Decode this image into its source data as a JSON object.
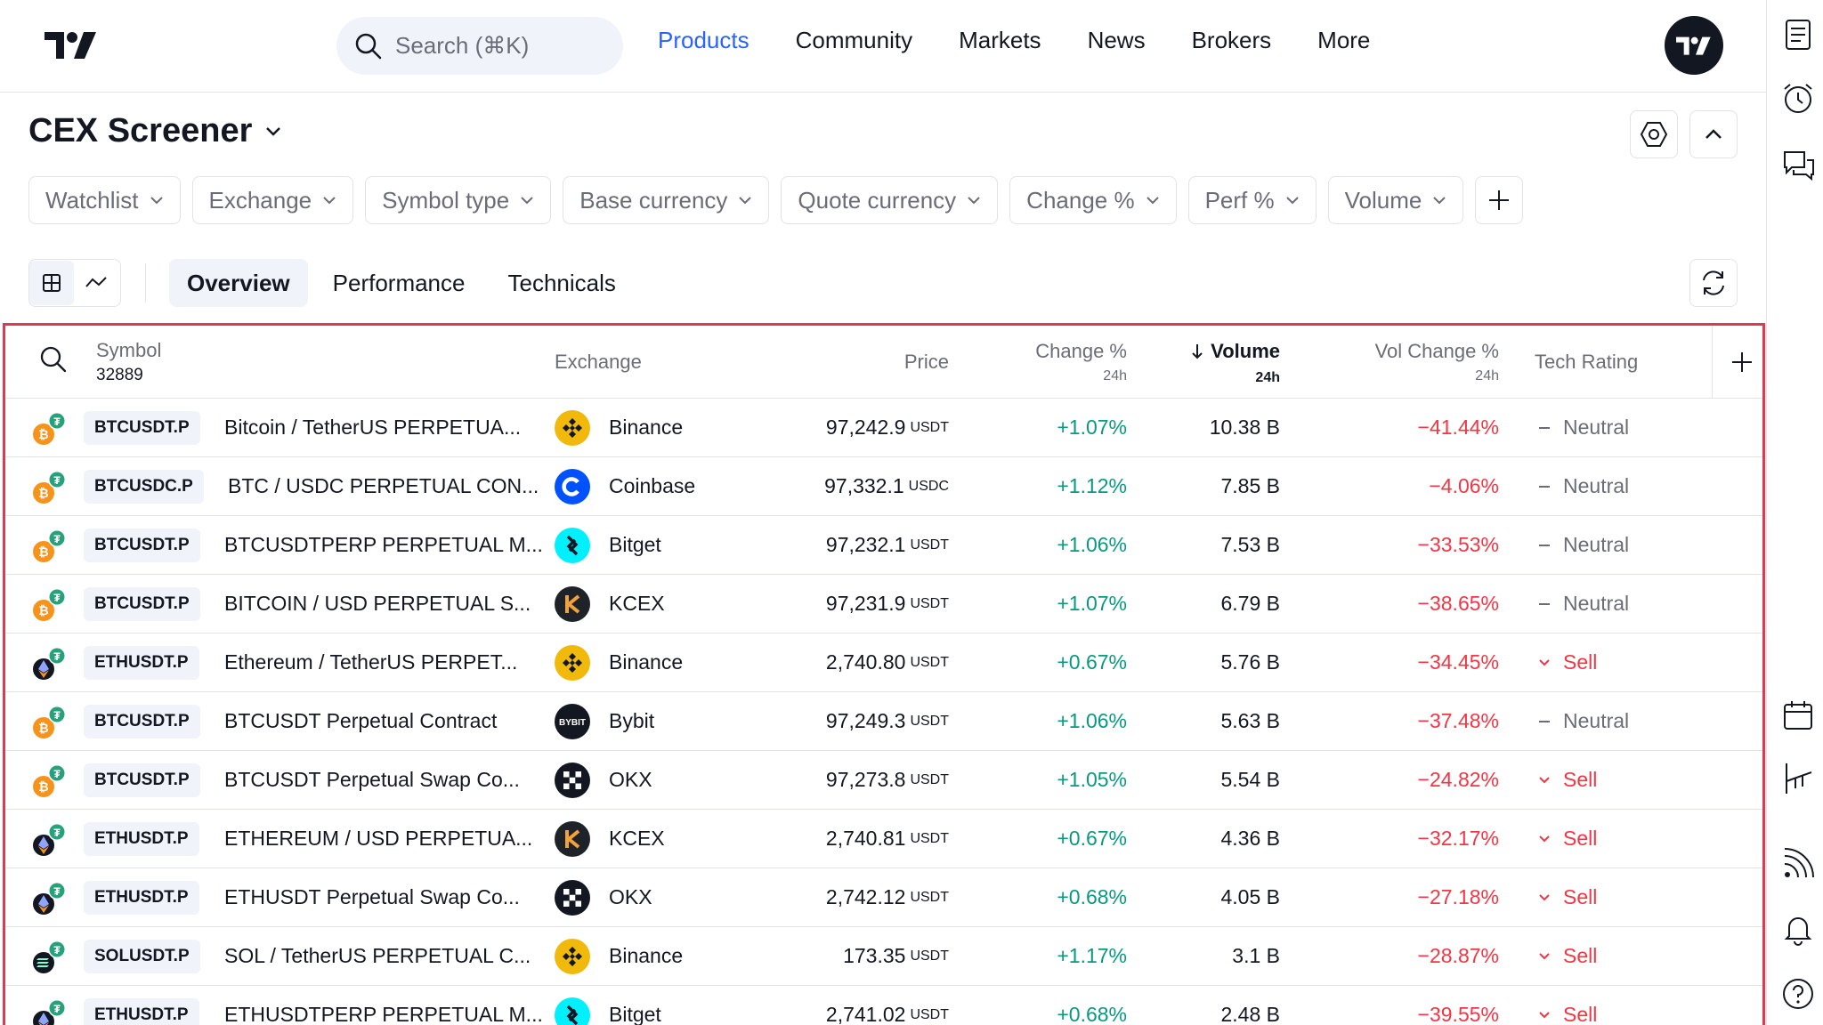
{
  "header": {
    "search_placeholder": "Search (⌘K)",
    "nav": [
      "Products",
      "Community",
      "Markets",
      "News",
      "Brokers",
      "More"
    ],
    "active_nav": "Products"
  },
  "page": {
    "title": "CEX Screener"
  },
  "filters": [
    "Watchlist",
    "Exchange",
    "Symbol type",
    "Base currency",
    "Quote currency",
    "Change %",
    "Perf %",
    "Volume"
  ],
  "tabs": [
    "Overview",
    "Performance",
    "Technicals"
  ],
  "table": {
    "columns": {
      "symbol": "Symbol",
      "symbol_count": "32889",
      "exchange": "Exchange",
      "price": "Price",
      "change": "Change %",
      "change_sub": "24h",
      "volume": "Volume",
      "volume_sub": "24h",
      "vol_change": "Vol Change %",
      "vol_change_sub": "24h",
      "tech_rating": "Tech Rating"
    },
    "rows": [
      {
        "coin": "bitcoin",
        "ticker": "BTCUSDT.P",
        "description": "Bitcoin / TetherUS PERPETUA...",
        "exchange": "Binance",
        "exchange_icon": "binance-logo",
        "price": "97,242.9",
        "unit": "USDT",
        "change": "+1.07%",
        "volume": "10.38 B",
        "vol_change": "−41.44%",
        "rating": "Neutral"
      },
      {
        "coin": "bitcoin",
        "ticker": "BTCUSDC.P",
        "description": "BTC / USDC PERPETUAL CON...",
        "exchange": "Coinbase",
        "exchange_icon": "coinbase-logo",
        "price": "97,332.1",
        "unit": "USDC",
        "change": "+1.12%",
        "volume": "7.85 B",
        "vol_change": "−4.06%",
        "rating": "Neutral"
      },
      {
        "coin": "bitcoin",
        "ticker": "BTCUSDT.P",
        "description": "BTCUSDTPERP PERPETUAL M...",
        "exchange": "Bitget",
        "exchange_icon": "bitget-logo",
        "price": "97,232.1",
        "unit": "USDT",
        "change": "+1.06%",
        "volume": "7.53 B",
        "vol_change": "−33.53%",
        "rating": "Neutral"
      },
      {
        "coin": "bitcoin",
        "ticker": "BTCUSDT.P",
        "description": "BITCOIN / USD PERPETUAL S...",
        "exchange": "KCEX",
        "exchange_icon": "kcex-logo",
        "price": "97,231.9",
        "unit": "USDT",
        "change": "+1.07%",
        "volume": "6.79 B",
        "vol_change": "−38.65%",
        "rating": "Neutral"
      },
      {
        "coin": "ethereum",
        "ticker": "ETHUSDT.P",
        "description": "Ethereum / TetherUS PERPET...",
        "exchange": "Binance",
        "exchange_icon": "binance-logo",
        "price": "2,740.80",
        "unit": "USDT",
        "change": "+0.67%",
        "volume": "5.76 B",
        "vol_change": "−34.45%",
        "rating": "Sell"
      },
      {
        "coin": "bitcoin",
        "ticker": "BTCUSDT.P",
        "description": "BTCUSDT Perpetual Contract",
        "exchange": "Bybit",
        "exchange_icon": "bybit-logo",
        "price": "97,249.3",
        "unit": "USDT",
        "change": "+1.06%",
        "volume": "5.63 B",
        "vol_change": "−37.48%",
        "rating": "Neutral"
      },
      {
        "coin": "bitcoin",
        "ticker": "BTCUSDT.P",
        "description": "BTCUSDT Perpetual Swap Co...",
        "exchange": "OKX",
        "exchange_icon": "okx-logo",
        "price": "97,273.8",
        "unit": "USDT",
        "change": "+1.05%",
        "volume": "5.54 B",
        "vol_change": "−24.82%",
        "rating": "Sell"
      },
      {
        "coin": "ethereum",
        "ticker": "ETHUSDT.P",
        "description": "ETHEREUM / USD PERPETUA...",
        "exchange": "KCEX",
        "exchange_icon": "kcex-logo",
        "price": "2,740.81",
        "unit": "USDT",
        "change": "+0.67%",
        "volume": "4.36 B",
        "vol_change": "−32.17%",
        "rating": "Sell"
      },
      {
        "coin": "ethereum",
        "ticker": "ETHUSDT.P",
        "description": "ETHUSDT Perpetual Swap Co...",
        "exchange": "OKX",
        "exchange_icon": "okx-logo",
        "price": "2,742.12",
        "unit": "USDT",
        "change": "+0.68%",
        "volume": "4.05 B",
        "vol_change": "−27.18%",
        "rating": "Sell"
      },
      {
        "coin": "solana",
        "ticker": "SOLUSDT.P",
        "description": "SOL / TetherUS PERPETUAL C...",
        "exchange": "Binance",
        "exchange_icon": "binance-logo",
        "price": "173.35",
        "unit": "USDT",
        "change": "+1.17%",
        "volume": "3.1 B",
        "vol_change": "−28.87%",
        "rating": "Sell"
      },
      {
        "coin": "ethereum",
        "ticker": "ETHUSDT.P",
        "description": "ETHUSDTPERP PERPETUAL M...",
        "exchange": "Bitget",
        "exchange_icon": "bitget-logo",
        "price": "2,741.02",
        "unit": "USDT",
        "change": "+0.68%",
        "volume": "2.48 B",
        "vol_change": "−39.55%",
        "rating": "Sell"
      }
    ]
  },
  "colors": {
    "accent": "#2962ff",
    "positive": "#089981",
    "negative": "#f23645",
    "highlight_border": "#e0384d"
  }
}
